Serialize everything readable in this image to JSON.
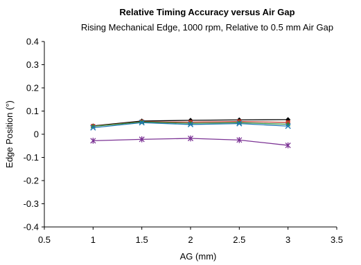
{
  "chart_data": {
    "type": "line",
    "title": "Relative Timing Accuracy versus Air Gap",
    "subtitle": "Rising Mechanical Edge, 1000 rpm, Relative to 0.5 mm Air Gap",
    "xlabel": "AG (mm)",
    "ylabel": "Edge Position (°)",
    "xlim": [
      0.5,
      3.5
    ],
    "ylim": [
      -0.4,
      0.4
    ],
    "x_ticks": [
      0.5,
      1,
      1.5,
      2,
      2.5,
      3,
      3.5
    ],
    "y_ticks": [
      0.4,
      0.3,
      0.2,
      0.1,
      0,
      -0.1,
      -0.2,
      -0.3,
      -0.4
    ],
    "x_tick_labels": [
      "0.5",
      "1",
      "1.5",
      "2",
      "2.5",
      "3",
      "3.5"
    ],
    "y_tick_labels": [
      "0.4",
      "0.3",
      "0.2",
      "0.1",
      "0",
      "-0.1",
      "-0.2",
      "-0.3",
      "-0.4"
    ],
    "grid": false,
    "legend": "none",
    "x": [
      1,
      1.5,
      2,
      2.5,
      3
    ],
    "series": [
      {
        "color": "#000000",
        "marker": "diamond",
        "values": [
          0.036,
          0.057,
          0.06,
          0.062,
          0.063
        ]
      },
      {
        "color": "#c0392b",
        "marker": "square",
        "values": [
          0.035,
          0.054,
          0.052,
          0.055,
          0.051
        ]
      },
      {
        "color": "#2e8b3a",
        "marker": "triangle",
        "values": [
          0.034,
          0.053,
          0.047,
          0.05,
          0.043
        ]
      },
      {
        "color": "#1f77b4",
        "marker": "x",
        "values": [
          0.028,
          0.05,
          0.042,
          0.046,
          0.035
        ]
      },
      {
        "color": "#7b3294",
        "marker": "star",
        "values": [
          -0.028,
          -0.022,
          -0.018,
          -0.025,
          -0.048
        ]
      }
    ]
  }
}
